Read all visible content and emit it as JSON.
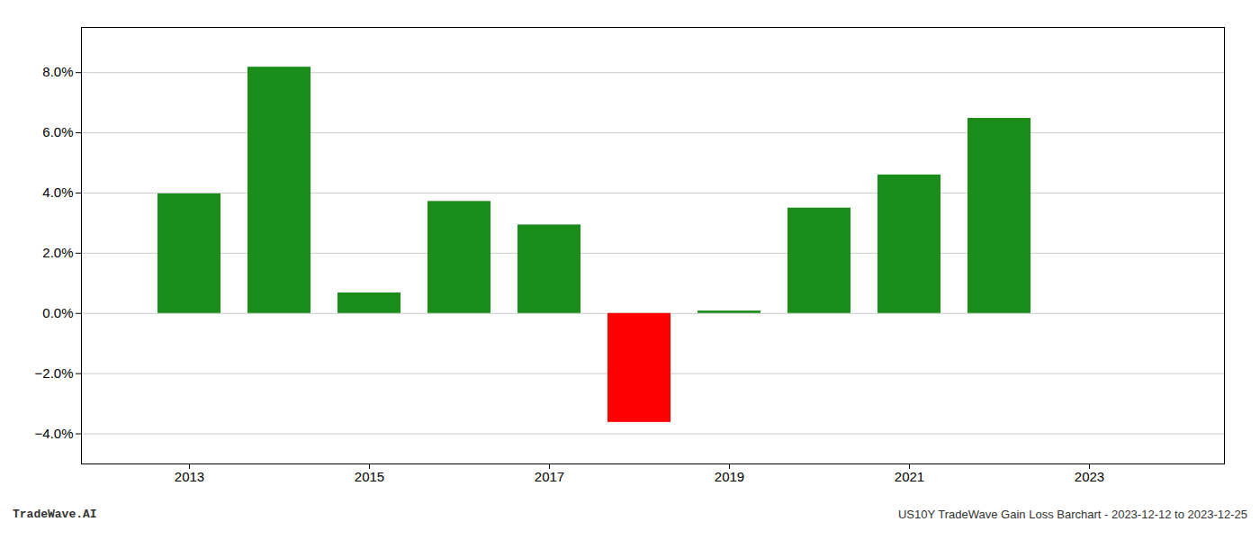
{
  "chart_data": {
    "type": "bar",
    "x": [
      2013,
      2014,
      2015,
      2016,
      2017,
      2018,
      2019,
      2020,
      2021,
      2022
    ],
    "values": [
      0.0397,
      0.0818,
      0.0068,
      0.0372,
      0.0294,
      -0.0362,
      0.0008,
      0.035,
      0.046,
      0.0648
    ],
    "colors": [
      "#1a8c1a",
      "#1a8c1a",
      "#1a8c1a",
      "#1a8c1a",
      "#1a8c1a",
      "#ff0000",
      "#1a8c1a",
      "#1a8c1a",
      "#1a8c1a",
      "#1a8c1a"
    ],
    "xlim": [
      2011.8,
      2024.5
    ],
    "xticks": [
      2013,
      2015,
      2017,
      2019,
      2021,
      2023
    ],
    "ylim": [
      -0.05,
      0.095
    ],
    "yticks": [
      {
        "value": -0.04,
        "label": "−4.0%"
      },
      {
        "value": -0.02,
        "label": "−2.0%"
      },
      {
        "value": 0.0,
        "label": "0.0%"
      },
      {
        "value": 0.02,
        "label": "2.0%"
      },
      {
        "value": 0.04,
        "label": "4.0%"
      },
      {
        "value": 0.06,
        "label": "6.0%"
      },
      {
        "value": 0.08,
        "label": "8.0%"
      }
    ],
    "grid": true,
    "annotations": [
      "TradeWave.AI",
      "US10Y TradeWave Gain Loss Barchart - 2023-12-12 to 2023-12-25"
    ]
  }
}
